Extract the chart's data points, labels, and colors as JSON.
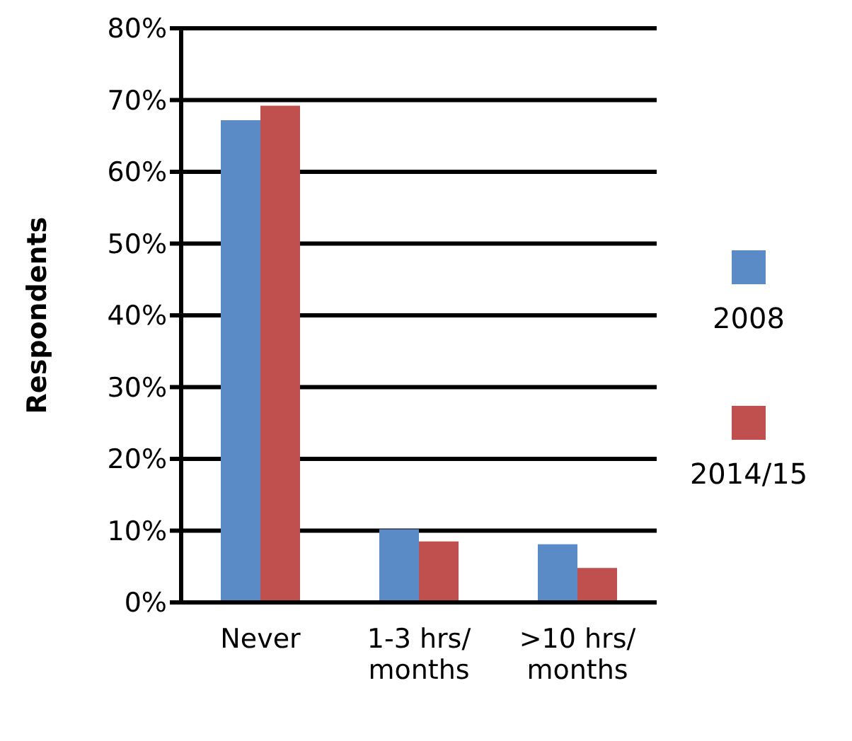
{
  "chart_data": {
    "type": "bar",
    "ylabel": "Respondents",
    "categories": [
      "Never",
      "1-3 hrs/ months",
      ">10 hrs/ months"
    ],
    "series": [
      {
        "name": "2008",
        "color": "#5b8bc7",
        "values": [
          67.2,
          10.2,
          8.1
        ]
      },
      {
        "name": "2014/15",
        "color": "#c0504d",
        "values": [
          69.2,
          8.5,
          4.8
        ]
      }
    ],
    "ylim": [
      0,
      80
    ],
    "yticks": [
      {
        "value": 0,
        "label": "0%"
      },
      {
        "value": 10,
        "label": "10%"
      },
      {
        "value": 20,
        "label": "20%"
      },
      {
        "value": 30,
        "label": "30%"
      },
      {
        "value": 40,
        "label": "40%"
      },
      {
        "value": 50,
        "label": "50%"
      },
      {
        "value": 60,
        "label": "60%"
      },
      {
        "value": 70,
        "label": "70%"
      },
      {
        "value": 80,
        "label": "80%"
      }
    ],
    "grid": "y",
    "legend": "right"
  }
}
